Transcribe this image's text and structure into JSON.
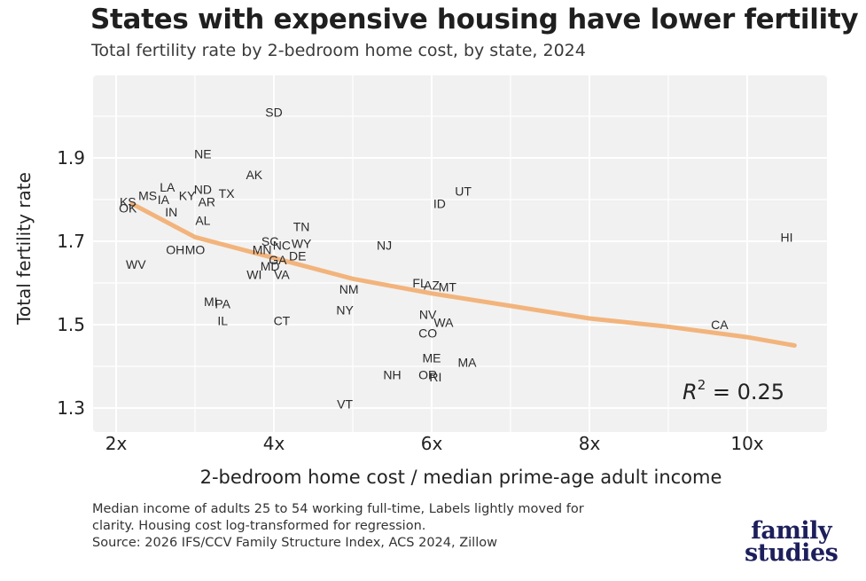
{
  "title": "States with expensive housing have lower fertility",
  "subtitle": "Total fertility rate by 2-bedroom home cost, by state, 2024",
  "footnote": {
    "line1": "Median income of adults 25 to 54 working full-time, Labels lightly moved for",
    "line2": "clarity. Housing cost log-transformed for regression.",
    "line3": "Source: 2026 IFS/CCV Family Structure Index, ACS 2024, Zillow"
  },
  "logo": {
    "line1": "family",
    "line2": "studies"
  },
  "colors": {
    "panel": "#f1f1f1",
    "grid": "#ffffff",
    "trend": "#f2b47c",
    "text": "#1f1f1f"
  },
  "chart_data": {
    "type": "scatter",
    "xlabel": "2-bedroom home cost / median prime-age adult income",
    "ylabel": "Total fertility rate",
    "xlim": [
      1.8,
      10.6
    ],
    "ylim": [
      1.27,
      2.04
    ],
    "xticks": [
      2,
      4,
      6,
      8,
      10
    ],
    "xtick_labels": [
      "2x",
      "4x",
      "6x",
      "8x",
      "10x"
    ],
    "yticks": [
      1.3,
      1.5,
      1.7,
      1.9
    ],
    "ytick_labels": [
      "1.3",
      "1.5",
      "1.7",
      "1.9"
    ],
    "grid": true,
    "annotation": {
      "text": "R",
      "sup": "2",
      "rest": " = 0.25"
    },
    "points": [
      {
        "label": "SD",
        "x": 4.0,
        "y": 2.01
      },
      {
        "label": "NE",
        "x": 3.1,
        "y": 1.91
      },
      {
        "label": "AK",
        "x": 3.75,
        "y": 1.86
      },
      {
        "label": "KS",
        "x": 2.15,
        "y": 1.795
      },
      {
        "label": "OK",
        "x": 2.15,
        "y": 1.78
      },
      {
        "label": "MS",
        "x": 2.4,
        "y": 1.81
      },
      {
        "label": "LA",
        "x": 2.65,
        "y": 1.83
      },
      {
        "label": "IA",
        "x": 2.6,
        "y": 1.8
      },
      {
        "label": "KY",
        "x": 2.9,
        "y": 1.81
      },
      {
        "label": "ND",
        "x": 3.1,
        "y": 1.825
      },
      {
        "label": "TX",
        "x": 3.4,
        "y": 1.815
      },
      {
        "label": "AR",
        "x": 3.15,
        "y": 1.795
      },
      {
        "label": "IN",
        "x": 2.7,
        "y": 1.77
      },
      {
        "label": "AL",
        "x": 3.1,
        "y": 1.75
      },
      {
        "label": "UT",
        "x": 6.4,
        "y": 1.82
      },
      {
        "label": "ID",
        "x": 6.1,
        "y": 1.79
      },
      {
        "label": "TN",
        "x": 4.35,
        "y": 1.735
      },
      {
        "label": "NJ",
        "x": 5.4,
        "y": 1.69
      },
      {
        "label": "HI",
        "x": 10.5,
        "y": 1.71
      },
      {
        "label": "OH",
        "x": 2.75,
        "y": 1.68
      },
      {
        "label": "MO",
        "x": 3.0,
        "y": 1.68
      },
      {
        "label": "SC",
        "x": 3.95,
        "y": 1.7
      },
      {
        "label": "NC",
        "x": 4.1,
        "y": 1.69
      },
      {
        "label": "WY",
        "x": 4.35,
        "y": 1.695
      },
      {
        "label": "MN",
        "x": 3.85,
        "y": 1.68
      },
      {
        "label": "DE",
        "x": 4.3,
        "y": 1.665
      },
      {
        "label": "GA",
        "x": 4.05,
        "y": 1.655
      },
      {
        "label": "WV",
        "x": 2.25,
        "y": 1.645
      },
      {
        "label": "MD",
        "x": 3.95,
        "y": 1.64
      },
      {
        "label": "WI",
        "x": 3.75,
        "y": 1.62
      },
      {
        "label": "VA",
        "x": 4.1,
        "y": 1.62
      },
      {
        "label": "FL",
        "x": 5.85,
        "y": 1.6
      },
      {
        "label": "AZ",
        "x": 6.0,
        "y": 1.595
      },
      {
        "label": "MT",
        "x": 6.2,
        "y": 1.59
      },
      {
        "label": "NM",
        "x": 4.95,
        "y": 1.585
      },
      {
        "label": "MI",
        "x": 3.2,
        "y": 1.555
      },
      {
        "label": "PA",
        "x": 3.35,
        "y": 1.55
      },
      {
        "label": "NY",
        "x": 4.9,
        "y": 1.535
      },
      {
        "label": "IL",
        "x": 3.35,
        "y": 1.51
      },
      {
        "label": "CT",
        "x": 4.1,
        "y": 1.51
      },
      {
        "label": "NV",
        "x": 5.95,
        "y": 1.525
      },
      {
        "label": "WA",
        "x": 6.15,
        "y": 1.505
      },
      {
        "label": "CA",
        "x": 9.65,
        "y": 1.5
      },
      {
        "label": "CO",
        "x": 5.95,
        "y": 1.48
      },
      {
        "label": "ME",
        "x": 6.0,
        "y": 1.42
      },
      {
        "label": "MA",
        "x": 6.45,
        "y": 1.41
      },
      {
        "label": "NH",
        "x": 5.5,
        "y": 1.38
      },
      {
        "label": "OR",
        "x": 5.95,
        "y": 1.38
      },
      {
        "label": "RI",
        "x": 6.05,
        "y": 1.375
      },
      {
        "label": "VT",
        "x": 4.9,
        "y": 1.31
      }
    ],
    "trend": {
      "x": [
        2.2,
        3.0,
        4.0,
        5.0,
        6.0,
        7.0,
        8.0,
        9.0,
        10.0,
        10.6
      ],
      "y": [
        1.79,
        1.71,
        1.66,
        1.61,
        1.575,
        1.545,
        1.515,
        1.495,
        1.47,
        1.45
      ]
    }
  }
}
